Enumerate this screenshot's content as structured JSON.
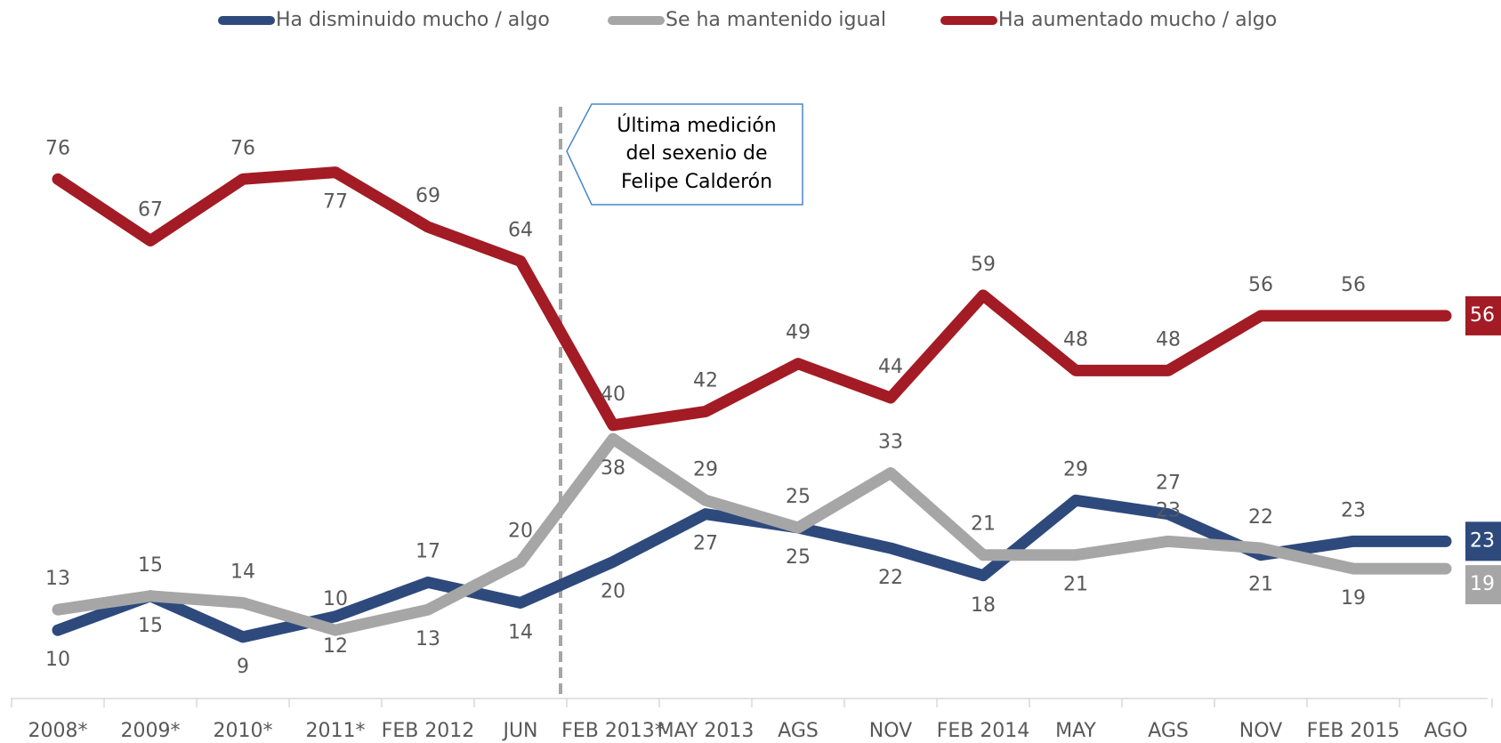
{
  "chart_data": {
    "type": "line",
    "categories": [
      "2008*",
      "2009*",
      "2010*",
      "2011*",
      "FEB 2012",
      "JUN",
      "FEB 2013*",
      "MAY 2013",
      "AGS",
      "NOV",
      "FEB 2014",
      "MAY",
      "AGS",
      "NOV",
      "FEB 2015",
      "AGO"
    ],
    "series": [
      {
        "name": "Ha disminuido mucho / algo",
        "color": "#2e4a7d",
        "values": [
          10,
          15,
          9,
          12,
          17,
          14,
          20,
          27,
          25,
          22,
          18,
          29,
          27,
          21,
          23,
          23
        ]
      },
      {
        "name": "Se ha mantenido igual",
        "color": "#a6a6a6",
        "values": [
          13,
          15,
          14,
          10,
          13,
          20,
          38,
          29,
          25,
          33,
          21,
          21,
          23,
          22,
          19,
          19
        ]
      },
      {
        "name": "Ha aumentado mucho / algo",
        "color": "#a31b24",
        "values": [
          76,
          67,
          76,
          77,
          69,
          64,
          40,
          42,
          49,
          44,
          59,
          48,
          48,
          56,
          56,
          56
        ]
      }
    ],
    "ylim": [
      0,
      100
    ],
    "legend": "top",
    "annotation": {
      "lines": [
        "Última medición",
        "del sexenio de",
        "Felipe Calderón"
      ]
    }
  }
}
